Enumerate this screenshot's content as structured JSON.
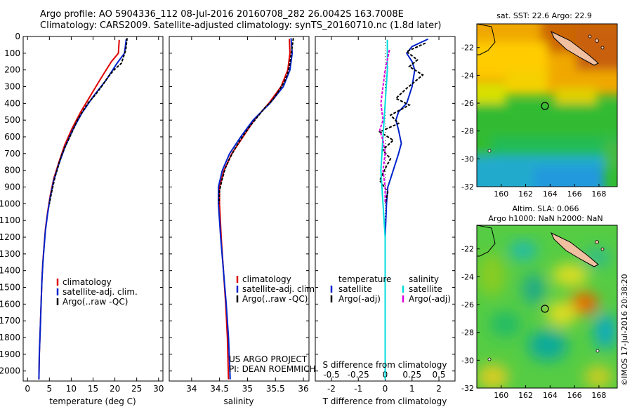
{
  "header": {
    "line1": "Argo profile: AO 5904336_112 08-Jul-2016 20160708_282 26.0042S 163.7008E",
    "line2": "Climatology: CARS2009. Satellite-adjusted climatology: synTS_20160710.nc (1.8d later)"
  },
  "side_text": "©IMOS 17-Jul-2016 20:38:20",
  "chart_data": [
    {
      "id": "temperature",
      "type": "line",
      "xlabel": "temperature (deg C)",
      "xlim": [
        -1,
        31
      ],
      "xticks": [
        0,
        5,
        10,
        15,
        20,
        25,
        30
      ],
      "ylim": [
        2060,
        0
      ],
      "yticks": [
        0,
        100,
        200,
        300,
        400,
        500,
        600,
        700,
        800,
        900,
        1000,
        1100,
        1200,
        1300,
        1400,
        1500,
        1600,
        1700,
        1800,
        1900,
        2000
      ],
      "legend": [
        "climatology",
        "satellite-adj. clim.",
        "Argo(..raw -QC)"
      ],
      "series": [
        {
          "name": "climatology",
          "color": "#dd0000",
          "points": [
            [
              21.0,
              20
            ],
            [
              20.8,
              100
            ],
            [
              19.2,
              150
            ],
            [
              16.8,
              250
            ],
            [
              14.5,
              350
            ],
            [
              12.2,
              450
            ],
            [
              10.2,
              550
            ],
            [
              8.5,
              650
            ],
            [
              7.2,
              750
            ],
            [
              6.0,
              850
            ],
            [
              5.2,
              950
            ],
            [
              4.6,
              1050
            ],
            [
              4.1,
              1150
            ],
            [
              3.8,
              1250
            ],
            [
              3.5,
              1350
            ],
            [
              3.3,
              1450
            ],
            [
              3.1,
              1600
            ],
            [
              2.9,
              1750
            ],
            [
              2.7,
              1900
            ],
            [
              2.6,
              2050
            ]
          ]
        },
        {
          "name": "satellite-adj. clim.",
          "color": "#0022cc",
          "points": [
            [
              22.6,
              15
            ],
            [
              22.2,
              100
            ],
            [
              20.5,
              160
            ],
            [
              18.0,
              260
            ],
            [
              15.0,
              360
            ],
            [
              12.4,
              460
            ],
            [
              10.3,
              560
            ],
            [
              8.6,
              660
            ],
            [
              7.2,
              760
            ],
            [
              6.0,
              860
            ],
            [
              5.2,
              960
            ],
            [
              4.6,
              1060
            ],
            [
              4.1,
              1160
            ],
            [
              3.8,
              1260
            ],
            [
              3.5,
              1360
            ],
            [
              3.3,
              1460
            ],
            [
              3.1,
              1600
            ],
            [
              2.9,
              1750
            ],
            [
              2.7,
              1900
            ],
            [
              2.6,
              2050
            ]
          ]
        },
        {
          "name": "Argo(..raw -QC)",
          "color": "#000000",
          "points": [
            [
              22.8,
              10
            ],
            [
              22.5,
              80
            ],
            [
              21.5,
              160
            ],
            [
              19.8,
              200
            ],
            [
              18.5,
              240
            ],
            [
              17.2,
              290
            ],
            [
              15.5,
              350
            ],
            [
              13.8,
              400
            ],
            [
              12.6,
              450
            ],
            [
              11.4,
              500
            ],
            [
              10.4,
              560
            ],
            [
              9.5,
              610
            ],
            [
              8.6,
              660
            ],
            [
              7.8,
              710
            ],
            [
              7.2,
              760
            ],
            [
              6.3,
              840
            ],
            [
              5.6,
              920
            ],
            [
              5.0,
              1000
            ]
          ]
        }
      ]
    },
    {
      "id": "salinity",
      "type": "line",
      "xlabel": "salinity",
      "xlim": [
        33.6,
        36.1
      ],
      "xticks": [
        34,
        34.5,
        35,
        35.5,
        36
      ],
      "ylim": [
        2060,
        0
      ],
      "legend": [
        "climatology",
        "satellite-adj. clim.",
        "Argo(..raw -QC)"
      ],
      "annotation": [
        "US ARGO PROJECT",
        "PI: DEAN ROEMMICH"
      ],
      "series": [
        {
          "name": "climatology",
          "color": "#dd0000",
          "points": [
            [
              35.75,
              15
            ],
            [
              35.76,
              100
            ],
            [
              35.72,
              200
            ],
            [
              35.6,
              300
            ],
            [
              35.38,
              400
            ],
            [
              35.12,
              500
            ],
            [
              34.92,
              600
            ],
            [
              34.72,
              700
            ],
            [
              34.58,
              800
            ],
            [
              34.5,
              900
            ],
            [
              34.5,
              1000
            ],
            [
              34.53,
              1200
            ],
            [
              34.57,
              1400
            ],
            [
              34.61,
              1600
            ],
            [
              34.64,
              1800
            ],
            [
              34.66,
              2050
            ]
          ]
        },
        {
          "name": "satellite-adj. clim.",
          "color": "#0022cc",
          "points": [
            [
              35.78,
              10
            ],
            [
              35.8,
              100
            ],
            [
              35.76,
              200
            ],
            [
              35.64,
              300
            ],
            [
              35.4,
              400
            ],
            [
              35.1,
              500
            ],
            [
              34.88,
              600
            ],
            [
              34.68,
              700
            ],
            [
              34.55,
              800
            ],
            [
              34.48,
              900
            ],
            [
              34.48,
              1000
            ],
            [
              34.52,
              1200
            ],
            [
              34.57,
              1400
            ],
            [
              34.62,
              1600
            ],
            [
              34.66,
              1800
            ],
            [
              34.69,
              2050
            ]
          ]
        },
        {
          "name": "Argo(..raw -QC)",
          "color": "#000000",
          "points": [
            [
              35.82,
              10
            ],
            [
              35.8,
              60
            ],
            [
              35.78,
              110
            ],
            [
              35.76,
              160
            ],
            [
              35.72,
              220
            ],
            [
              35.66,
              270
            ],
            [
              35.55,
              330
            ],
            [
              35.45,
              380
            ],
            [
              35.3,
              430
            ],
            [
              35.18,
              480
            ],
            [
              35.06,
              530
            ],
            [
              34.95,
              580
            ],
            [
              34.85,
              630
            ],
            [
              34.76,
              680
            ],
            [
              34.68,
              730
            ],
            [
              34.6,
              790
            ],
            [
              34.55,
              850
            ],
            [
              34.5,
              920
            ],
            [
              34.49,
              1000
            ]
          ]
        }
      ]
    },
    {
      "id": "difference",
      "type": "line",
      "xlabel": "T difference from climatology",
      "xlim": [
        -2.6,
        2.6
      ],
      "xticks": [
        -2,
        -1,
        0,
        1,
        2
      ],
      "top_axis_label": "S difference from climatology",
      "top_ticks": [
        "-0.5",
        "-0.25",
        "0",
        "0.25",
        "0.5"
      ],
      "top_tick_values": [
        -0.5,
        -0.25,
        0,
        0.25,
        0.5
      ],
      "ylim": [
        2060,
        0
      ],
      "legend_temperature": {
        "title": "temperature",
        "items": [
          "satellite",
          "Argo(-adj)"
        ]
      },
      "legend_salinity": {
        "title": "salinity",
        "items": [
          "satellite",
          "Argo(-adj)"
        ]
      },
      "series": [
        {
          "name": "temperature satellite",
          "color": "#0022cc",
          "points": [
            [
              1.6,
              15
            ],
            [
              1.0,
              60
            ],
            [
              0.8,
              100
            ],
            [
              1.0,
              150
            ],
            [
              1.1,
              200
            ],
            [
              1.0,
              300
            ],
            [
              0.8,
              400
            ],
            [
              0.5,
              450
            ],
            [
              0.4,
              500
            ],
            [
              0.5,
              560
            ],
            [
              0.6,
              640
            ],
            [
              0.5,
              700
            ],
            [
              0.3,
              800
            ],
            [
              0.1,
              900
            ],
            [
              0.05,
              1000
            ],
            [
              0.0,
              1200
            ],
            [
              0.0,
              2050
            ]
          ]
        },
        {
          "name": "temperature Argo(-adj)",
          "color": "#000000",
          "points": [
            [
              1.5,
              40
            ],
            [
              0.8,
              90
            ],
            [
              1.2,
              140
            ],
            [
              0.9,
              180
            ],
            [
              1.4,
              230
            ],
            [
              1.1,
              270
            ],
            [
              0.8,
              310
            ],
            [
              0.4,
              370
            ],
            [
              0.9,
              410
            ],
            [
              0.2,
              470
            ],
            [
              0.5,
              520
            ],
            [
              -0.2,
              570
            ],
            [
              0.3,
              620
            ],
            [
              -0.1,
              680
            ],
            [
              0.2,
              730
            ],
            [
              0.0,
              790
            ],
            [
              -0.2,
              860
            ],
            [
              0.1,
              930
            ],
            [
              0.0,
              1000
            ]
          ]
        },
        {
          "name": "salinity satellite",
          "color": "#00dddd",
          "scale": "S",
          "points": [
            [
              0.02,
              20
            ],
            [
              0.02,
              200
            ],
            [
              0.0,
              400
            ],
            [
              -0.02,
              600
            ],
            [
              -0.04,
              800
            ],
            [
              -0.02,
              1000
            ],
            [
              0.0,
              1200
            ],
            [
              0.0,
              2050
            ]
          ]
        },
        {
          "name": "salinity Argo(-adj)",
          "color": "#dd00dd",
          "scale": "S",
          "points": [
            [
              0.04,
              80
            ],
            [
              0.0,
              200
            ],
            [
              -0.02,
              300
            ],
            [
              -0.04,
              400
            ],
            [
              -0.02,
              500
            ],
            [
              -0.05,
              560
            ],
            [
              -0.02,
              620
            ],
            [
              0.0,
              700
            ],
            [
              -0.02,
              800
            ],
            [
              0.0,
              900
            ],
            [
              0.0,
              1000
            ]
          ]
        }
      ]
    },
    {
      "id": "sst_map",
      "type": "heatmap",
      "title": "sat. SST: 22.6 Argo: 22.9",
      "xlim": [
        158,
        169.5
      ],
      "ylim": [
        -32,
        -20.3
      ],
      "xticks": [
        160,
        162,
        164,
        166,
        168
      ],
      "yticks": [
        -22,
        -24,
        -26,
        -28,
        -30,
        -32
      ],
      "marker": {
        "lon": 163.7,
        "lat": -26.0
      }
    },
    {
      "id": "sla_map",
      "type": "heatmap",
      "title_line1": "Altim. SLA: 0.066",
      "title_line2": "Argo h1000: NaN h2000: NaN",
      "xlim": [
        158,
        169.5
      ],
      "ylim": [
        -32,
        -20.3
      ],
      "xticks": [
        160,
        162,
        164,
        166,
        168
      ],
      "yticks": [
        -22,
        -24,
        -26,
        -28,
        -30,
        -32
      ],
      "marker": {
        "lon": 163.7,
        "lat": -26.0
      }
    }
  ]
}
